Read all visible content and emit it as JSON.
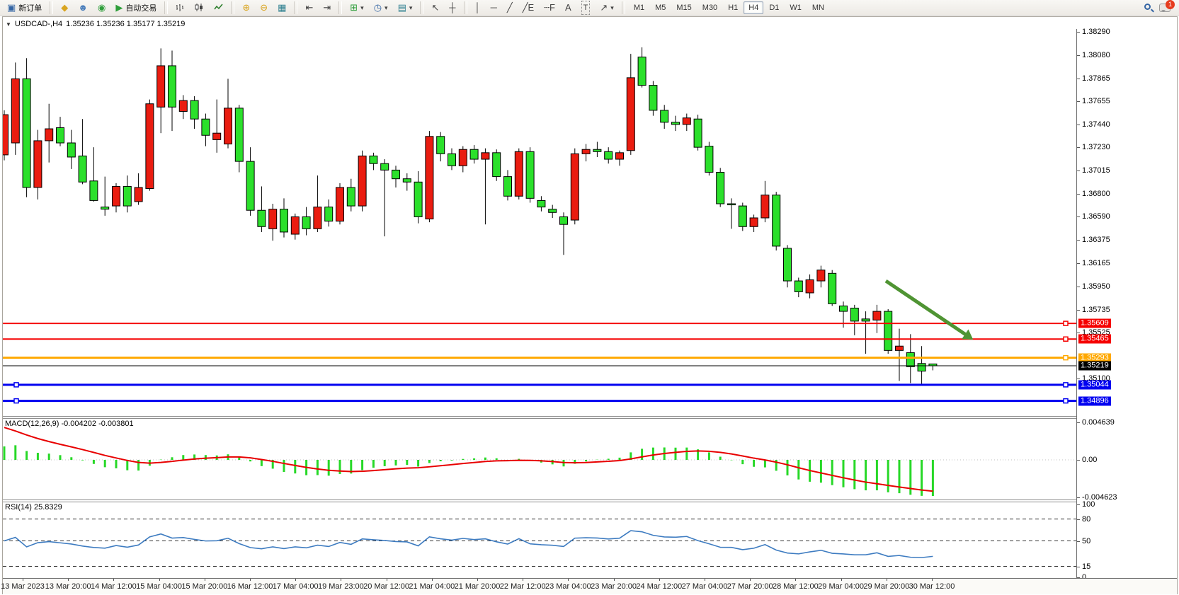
{
  "toolbar": {
    "new_order_label": "新订单",
    "autotrade_label": "自动交易",
    "timeframes": [
      "M1",
      "M5",
      "M15",
      "M30",
      "H1",
      "H4",
      "D1",
      "W1",
      "MN"
    ],
    "active_timeframe": "H4",
    "notification_count": "1",
    "icons": {
      "new_order": "▣",
      "seal": "◆",
      "profile": "☻",
      "community": "◉",
      "autotrade_play": "▶",
      "zoom_in": "⊕",
      "zoom_out": "⊖",
      "tile_windows": "▦",
      "chart_shift": "⇤",
      "auto_scroll": "⇥",
      "new_chart": "⊞",
      "period": "◷",
      "templates": "▤",
      "dropdown": "▾",
      "cursor": "↖",
      "crosshair": "┼",
      "vertical_line": "│",
      "horizontal_line": "─",
      "trend_line": "╱",
      "channel": "╱E",
      "fibonacci": "┄F",
      "text": "A",
      "text_label": "T",
      "arrows": "↗"
    }
  },
  "chart": {
    "title_symbol": "USDCAD-,H4",
    "title_quotes": "1.35236 1.35236 1.35177 1.35219",
    "collapse_icon": "▼",
    "price_axis_ticks": [
      "1.38290",
      "1.38080",
      "1.37865",
      "1.37655",
      "1.37440",
      "1.37230",
      "1.37015",
      "1.36800",
      "1.36590",
      "1.36375",
      "1.36165",
      "1.35950",
      "1.35735",
      "1.35525",
      "1.35100"
    ],
    "hlines": [
      {
        "name": "resistance-1",
        "price": "1.35609",
        "value": 1.35609,
        "color": "#f50000",
        "width": 2
      },
      {
        "name": "resistance-2",
        "price": "1.35465",
        "value": 1.35465,
        "color": "#f50000",
        "width": 2
      },
      {
        "name": "support-orange",
        "price": "1.35293",
        "value": 1.35293,
        "color": "#ffa800",
        "width": 3
      },
      {
        "name": "current-price",
        "price": "1.35219",
        "value": 1.35219,
        "color": "#000000",
        "width": 1
      },
      {
        "name": "support-blue-1",
        "price": "1.35044",
        "value": 1.35044,
        "color": "#0000f0",
        "width": 3
      },
      {
        "name": "support-blue-2",
        "price": "1.34896",
        "value": 1.34896,
        "color": "#0000f0",
        "width": 3
      }
    ],
    "arrow": {
      "from_bar": 78.8,
      "from_price": 1.36,
      "to_bar": 86.6,
      "to_price": 1.3546,
      "color": "#4f9433"
    }
  },
  "macd": {
    "label": "MACD(12,26,9) -0.004202 -0.003801",
    "axis": [
      {
        "text": "0.004639",
        "value": 0.004639
      },
      {
        "text": "0.00",
        "value": 0
      },
      {
        "text": "-0.004623",
        "value": -0.004623
      }
    ],
    "params": {
      "fast": 12,
      "slow": 26,
      "signal": 9
    },
    "histogram_color": "#27d827",
    "signal_color": "#e80000"
  },
  "rsi": {
    "label": "RSI(14) 25.8329",
    "period": 14,
    "levels": [
      {
        "text": "100",
        "value": 100,
        "dashed": false
      },
      {
        "text": "80",
        "value": 80,
        "dashed": true
      },
      {
        "text": "50",
        "value": 50,
        "dashed": true
      },
      {
        "text": "15",
        "value": 15,
        "dashed": true
      },
      {
        "text": "0",
        "value": 0,
        "dashed": false
      }
    ],
    "line_color": "#3e7cc1"
  },
  "chart_data": {
    "type": "candlestick",
    "symbol": "USDCAD-",
    "timeframe": "H4",
    "bull_color": "#ea1c10",
    "bear_color": "#2be02b",
    "outline_color": "#000000",
    "note": "Chinese color convention: red = bullish, green = bearish",
    "price_min": 1.34848,
    "price_max": 1.38429,
    "x_labels": [
      "13 Mar 2023",
      "13 Mar 20:00",
      "14 Mar 12:00",
      "15 Mar 04:00",
      "15 Mar 20:00",
      "16 Mar 12:00",
      "17 Mar 04:00",
      "19 Mar 23:00",
      "20 Mar 12:00",
      "21 Mar 04:00",
      "21 Mar 20:00",
      "22 Mar 12:00",
      "23 Mar 04:00",
      "23 Mar 20:00",
      "24 Mar 12:00",
      "27 Mar 04:00",
      "27 Mar 20:00",
      "28 Mar 12:00",
      "29 Mar 04:00",
      "29 Mar 20:00",
      "30 Mar 12:00"
    ],
    "ohlc": [
      [
        1.3716,
        1.3757,
        1.3711,
        1.3753
      ],
      [
        1.3727,
        1.3801,
        1.3716,
        1.3786
      ],
      [
        1.3786,
        1.3805,
        1.3677,
        1.3686
      ],
      [
        1.3686,
        1.3739,
        1.3675,
        1.3729
      ],
      [
        1.3729,
        1.3763,
        1.3709,
        1.374
      ],
      [
        1.3741,
        1.3751,
        1.3724,
        1.3727
      ],
      [
        1.3727,
        1.3739,
        1.3703,
        1.3714
      ],
      [
        1.3715,
        1.3749,
        1.3689,
        1.3691
      ],
      [
        1.3692,
        1.3723,
        1.3673,
        1.3674
      ],
      [
        1.3668,
        1.3696,
        1.366,
        1.3666
      ],
      [
        1.3669,
        1.369,
        1.3663,
        1.3687
      ],
      [
        1.3687,
        1.3697,
        1.3663,
        1.3669
      ],
      [
        1.3673,
        1.3699,
        1.367,
        1.3686
      ],
      [
        1.3685,
        1.3767,
        1.3683,
        1.3763
      ],
      [
        1.376,
        1.3814,
        1.3736,
        1.3798
      ],
      [
        1.3798,
        1.3812,
        1.3738,
        1.376
      ],
      [
        1.3756,
        1.3771,
        1.3749,
        1.3766
      ],
      [
        1.3766,
        1.377,
        1.374,
        1.3749
      ],
      [
        1.3749,
        1.3754,
        1.3724,
        1.3734
      ],
      [
        1.373,
        1.3767,
        1.3718,
        1.3736
      ],
      [
        1.3726,
        1.3786,
        1.3722,
        1.3759
      ],
      [
        1.3759,
        1.3762,
        1.37,
        1.371
      ],
      [
        1.371,
        1.3723,
        1.366,
        1.3665
      ],
      [
        1.3665,
        1.3687,
        1.3645,
        1.365
      ],
      [
        1.3648,
        1.3671,
        1.3637,
        1.3666
      ],
      [
        1.3666,
        1.3676,
        1.364,
        1.3645
      ],
      [
        1.3643,
        1.3662,
        1.3638,
        1.3659
      ],
      [
        1.3659,
        1.3668,
        1.3642,
        1.3648
      ],
      [
        1.3648,
        1.3697,
        1.3645,
        1.3668
      ],
      [
        1.3668,
        1.3675,
        1.365,
        1.3655
      ],
      [
        1.3655,
        1.369,
        1.3652,
        1.3686
      ],
      [
        1.3686,
        1.3694,
        1.3664,
        1.3669
      ],
      [
        1.3669,
        1.372,
        1.3664,
        1.3715
      ],
      [
        1.3715,
        1.3718,
        1.3702,
        1.3708
      ],
      [
        1.3708,
        1.3712,
        1.3641,
        1.3702
      ],
      [
        1.3702,
        1.3706,
        1.3686,
        1.3694
      ],
      [
        1.3694,
        1.3699,
        1.3683,
        1.3691
      ],
      [
        1.3691,
        1.3701,
        1.3653,
        1.3659
      ],
      [
        1.3657,
        1.3738,
        1.3654,
        1.3733
      ],
      [
        1.3733,
        1.3737,
        1.371,
        1.3717
      ],
      [
        1.3717,
        1.3722,
        1.3702,
        1.3706
      ],
      [
        1.3706,
        1.3724,
        1.37,
        1.3721
      ],
      [
        1.3721,
        1.3725,
        1.3708,
        1.3712
      ],
      [
        1.3712,
        1.3722,
        1.3652,
        1.3718
      ],
      [
        1.3718,
        1.3721,
        1.3692,
        1.3696
      ],
      [
        1.3696,
        1.3702,
        1.3674,
        1.3678
      ],
      [
        1.3678,
        1.3722,
        1.3675,
        1.3719
      ],
      [
        1.3719,
        1.3723,
        1.3672,
        1.3676
      ],
      [
        1.3674,
        1.3678,
        1.3664,
        1.3668
      ],
      [
        1.3666,
        1.367,
        1.3658,
        1.3663
      ],
      [
        1.3659,
        1.3663,
        1.3624,
        1.3652
      ],
      [
        1.3656,
        1.3722,
        1.3652,
        1.3717
      ],
      [
        1.3717,
        1.3726,
        1.371,
        1.3721
      ],
      [
        1.3721,
        1.3728,
        1.3714,
        1.3719
      ],
      [
        1.3719,
        1.3723,
        1.3708,
        1.3712
      ],
      [
        1.3712,
        1.372,
        1.3706,
        1.3718
      ],
      [
        1.372,
        1.3809,
        1.3716,
        1.3787
      ],
      [
        1.3806,
        1.3815,
        1.3778,
        1.378
      ],
      [
        1.378,
        1.3784,
        1.3752,
        1.3757
      ],
      [
        1.3757,
        1.3762,
        1.374,
        1.3746
      ],
      [
        1.3746,
        1.3752,
        1.3738,
        1.3744
      ],
      [
        1.3744,
        1.3754,
        1.3738,
        1.375
      ],
      [
        1.3749,
        1.3753,
        1.372,
        1.3723
      ],
      [
        1.3724,
        1.3728,
        1.3697,
        1.37
      ],
      [
        1.37,
        1.3704,
        1.3668,
        1.3671
      ],
      [
        1.3671,
        1.3676,
        1.3648,
        1.367
      ],
      [
        1.3669,
        1.3672,
        1.3646,
        1.365
      ],
      [
        1.365,
        1.3661,
        1.3645,
        1.3658
      ],
      [
        1.3658,
        1.3692,
        1.3654,
        1.3679
      ],
      [
        1.3679,
        1.3682,
        1.3628,
        1.3632
      ],
      [
        1.363,
        1.3633,
        1.3594,
        1.36
      ],
      [
        1.36,
        1.3603,
        1.3585,
        1.359
      ],
      [
        1.3589,
        1.3606,
        1.3584,
        1.3601
      ],
      [
        1.36,
        1.3614,
        1.3594,
        1.361
      ],
      [
        1.3607,
        1.361,
        1.3577,
        1.3579
      ],
      [
        1.3577,
        1.3581,
        1.3557,
        1.3572
      ],
      [
        1.3575,
        1.3578,
        1.355,
        1.3563
      ],
      [
        1.3565,
        1.3572,
        1.3533,
        1.3563
      ],
      [
        1.3564,
        1.3578,
        1.3552,
        1.3572
      ],
      [
        1.3572,
        1.3574,
        1.3533,
        1.3536
      ],
      [
        1.3536,
        1.3556,
        1.3508,
        1.354
      ],
      [
        1.3534,
        1.3551,
        1.3506,
        1.3521
      ],
      [
        1.3524,
        1.354,
        1.3504,
        1.3517
      ],
      [
        1.35236,
        1.35236,
        1.35177,
        1.35219
      ]
    ],
    "indicators": [
      {
        "name": "MACD",
        "params": [
          12,
          26,
          9
        ],
        "display_values": [
          "-0.004202",
          "-0.003801"
        ]
      },
      {
        "name": "RSI",
        "params": [
          14
        ],
        "display_value": "25.8329"
      }
    ]
  }
}
